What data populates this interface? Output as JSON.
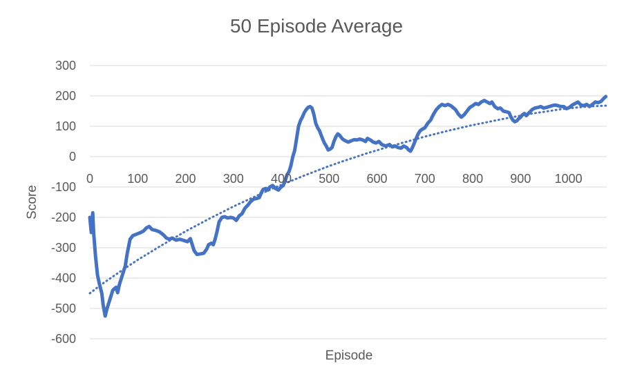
{
  "chart_data": {
    "type": "line",
    "title": "50 Episode Average",
    "xlabel": "Episode",
    "ylabel": "Score",
    "xlim": [
      0,
      1080
    ],
    "ylim": [
      -600,
      300
    ],
    "x_ticks": [
      "0",
      "100",
      "200",
      "300",
      "400",
      "500",
      "600",
      "700",
      "800",
      "900",
      "1000"
    ],
    "y_ticks": [
      "300",
      "200",
      "100",
      "0",
      "-100",
      "-200",
      "-300",
      "-400",
      "-500",
      "-600"
    ],
    "grid": "horizontal",
    "legend": "none",
    "series": [
      {
        "color": "#4472C4",
        "style": "solid",
        "points": [
          [
            0,
            -200
          ],
          [
            3,
            -250
          ],
          [
            6,
            -185
          ],
          [
            8,
            -250
          ],
          [
            12,
            -330
          ],
          [
            16,
            -390
          ],
          [
            20,
            -420
          ],
          [
            25,
            -450
          ],
          [
            28,
            -490
          ],
          [
            32,
            -525
          ],
          [
            36,
            -500
          ],
          [
            42,
            -470
          ],
          [
            48,
            -440
          ],
          [
            55,
            -430
          ],
          [
            58,
            -448
          ],
          [
            62,
            -420
          ],
          [
            68,
            -390
          ],
          [
            74,
            -360
          ],
          [
            78,
            -320
          ],
          [
            84,
            -272
          ],
          [
            90,
            -260
          ],
          [
            98,
            -255
          ],
          [
            106,
            -250
          ],
          [
            112,
            -245
          ],
          [
            118,
            -235
          ],
          [
            124,
            -230
          ],
          [
            130,
            -240
          ],
          [
            138,
            -243
          ],
          [
            146,
            -248
          ],
          [
            154,
            -258
          ],
          [
            160,
            -268
          ],
          [
            166,
            -272
          ],
          [
            172,
            -268
          ],
          [
            180,
            -275
          ],
          [
            188,
            -272
          ],
          [
            196,
            -276
          ],
          [
            204,
            -280
          ],
          [
            210,
            -270
          ],
          [
            214,
            -290
          ],
          [
            218,
            -310
          ],
          [
            224,
            -322
          ],
          [
            232,
            -320
          ],
          [
            238,
            -318
          ],
          [
            244,
            -305
          ],
          [
            248,
            -290
          ],
          [
            254,
            -285
          ],
          [
            258,
            -290
          ],
          [
            262,
            -270
          ],
          [
            266,
            -245
          ],
          [
            270,
            -215
          ],
          [
            276,
            -200
          ],
          [
            282,
            -198
          ],
          [
            288,
            -202
          ],
          [
            294,
            -200
          ],
          [
            300,
            -202
          ],
          [
            306,
            -210
          ],
          [
            312,
            -195
          ],
          [
            318,
            -188
          ],
          [
            324,
            -170
          ],
          [
            330,
            -160
          ],
          [
            336,
            -148
          ],
          [
            342,
            -140
          ],
          [
            348,
            -138
          ],
          [
            354,
            -135
          ],
          [
            358,
            -120
          ],
          [
            362,
            -108
          ],
          [
            368,
            -105
          ],
          [
            372,
            -110
          ],
          [
            376,
            -100
          ],
          [
            382,
            -95
          ],
          [
            388,
            -105
          ],
          [
            394,
            -110
          ],
          [
            398,
            -102
          ],
          [
            404,
            -95
          ],
          [
            408,
            -80
          ],
          [
            412,
            -60
          ],
          [
            416,
            -50
          ],
          [
            420,
            -30
          ],
          [
            424,
            0
          ],
          [
            428,
            20
          ],
          [
            432,
            60
          ],
          [
            436,
            100
          ],
          [
            440,
            118
          ],
          [
            444,
            130
          ],
          [
            448,
            145
          ],
          [
            452,
            155
          ],
          [
            456,
            162
          ],
          [
            460,
            165
          ],
          [
            464,
            160
          ],
          [
            468,
            140
          ],
          [
            472,
            110
          ],
          [
            476,
            95
          ],
          [
            480,
            85
          ],
          [
            486,
            60
          ],
          [
            490,
            45
          ],
          [
            494,
            35
          ],
          [
            498,
            22
          ],
          [
            502,
            25
          ],
          [
            506,
            30
          ],
          [
            510,
            50
          ],
          [
            514,
            65
          ],
          [
            518,
            75
          ],
          [
            522,
            70
          ],
          [
            528,
            58
          ],
          [
            534,
            52
          ],
          [
            540,
            48
          ],
          [
            546,
            52
          ],
          [
            552,
            56
          ],
          [
            558,
            55
          ],
          [
            564,
            58
          ],
          [
            570,
            55
          ],
          [
            576,
            50
          ],
          [
            580,
            60
          ],
          [
            586,
            55
          ],
          [
            592,
            48
          ],
          [
            598,
            45
          ],
          [
            604,
            50
          ],
          [
            610,
            40
          ],
          [
            618,
            35
          ],
          [
            626,
            40
          ],
          [
            632,
            32
          ],
          [
            638,
            35
          ],
          [
            644,
            30
          ],
          [
            650,
            28
          ],
          [
            656,
            35
          ],
          [
            662,
            30
          ],
          [
            666,
            22
          ],
          [
            670,
            18
          ],
          [
            674,
            30
          ],
          [
            678,
            45
          ],
          [
            682,
            60
          ],
          [
            686,
            75
          ],
          [
            690,
            85
          ],
          [
            694,
            90
          ],
          [
            700,
            95
          ],
          [
            706,
            110
          ],
          [
            712,
            120
          ],
          [
            718,
            140
          ],
          [
            724,
            155
          ],
          [
            730,
            165
          ],
          [
            736,
            172
          ],
          [
            742,
            168
          ],
          [
            748,
            172
          ],
          [
            754,
            168
          ],
          [
            760,
            160
          ],
          [
            764,
            155
          ],
          [
            770,
            140
          ],
          [
            776,
            130
          ],
          [
            782,
            138
          ],
          [
            788,
            150
          ],
          [
            794,
            162
          ],
          [
            800,
            168
          ],
          [
            806,
            175
          ],
          [
            812,
            172
          ],
          [
            818,
            180
          ],
          [
            824,
            185
          ],
          [
            830,
            180
          ],
          [
            836,
            175
          ],
          [
            840,
            180
          ],
          [
            846,
            165
          ],
          [
            852,
            158
          ],
          [
            858,
            160
          ],
          [
            864,
            150
          ],
          [
            870,
            148
          ],
          [
            876,
            145
          ],
          [
            880,
            130
          ],
          [
            884,
            120
          ],
          [
            888,
            115
          ],
          [
            892,
            118
          ],
          [
            896,
            125
          ],
          [
            900,
            130
          ],
          [
            904,
            138
          ],
          [
            908,
            142
          ],
          [
            912,
            135
          ],
          [
            918,
            145
          ],
          [
            924,
            155
          ],
          [
            930,
            160
          ],
          [
            936,
            162
          ],
          [
            942,
            165
          ],
          [
            948,
            160
          ],
          [
            954,
            162
          ],
          [
            960,
            165
          ],
          [
            966,
            168
          ],
          [
            972,
            170
          ],
          [
            978,
            168
          ],
          [
            984,
            165
          ],
          [
            990,
            165
          ],
          [
            996,
            158
          ],
          [
            1002,
            162
          ],
          [
            1008,
            170
          ],
          [
            1014,
            175
          ],
          [
            1020,
            180
          ],
          [
            1026,
            170
          ],
          [
            1032,
            168
          ],
          [
            1038,
            172
          ],
          [
            1044,
            165
          ],
          [
            1050,
            172
          ],
          [
            1056,
            180
          ],
          [
            1062,
            178
          ],
          [
            1068,
            182
          ],
          [
            1074,
            192
          ],
          [
            1078,
            198
          ]
        ]
      },
      {
        "color": "#4472C4",
        "style": "dotted",
        "trend": "logarithmic",
        "points": [
          [
            0,
            -450
          ],
          [
            25,
            -420
          ],
          [
            50,
            -393
          ],
          [
            75,
            -366
          ],
          [
            100,
            -340
          ],
          [
            125,
            -316
          ],
          [
            150,
            -292
          ],
          [
            175,
            -269
          ],
          [
            200,
            -246
          ],
          [
            225,
            -225
          ],
          [
            250,
            -204
          ],
          [
            275,
            -184
          ],
          [
            300,
            -164
          ],
          [
            325,
            -146
          ],
          [
            350,
            -128
          ],
          [
            375,
            -110
          ],
          [
            400,
            -93
          ],
          [
            425,
            -77
          ],
          [
            450,
            -61
          ],
          [
            475,
            -46
          ],
          [
            500,
            -31
          ],
          [
            525,
            -17
          ],
          [
            550,
            -4
          ],
          [
            575,
            9
          ],
          [
            600,
            21
          ],
          [
            625,
            33
          ],
          [
            650,
            44
          ],
          [
            675,
            55
          ],
          [
            700,
            66
          ],
          [
            725,
            76
          ],
          [
            750,
            86
          ],
          [
            775,
            95
          ],
          [
            800,
            104
          ],
          [
            825,
            112
          ],
          [
            850,
            120
          ],
          [
            875,
            128
          ],
          [
            900,
            135
          ],
          [
            925,
            142
          ],
          [
            950,
            148
          ],
          [
            975,
            154
          ],
          [
            1000,
            159
          ],
          [
            1025,
            163
          ],
          [
            1050,
            166
          ],
          [
            1078,
            168
          ]
        ]
      }
    ]
  }
}
